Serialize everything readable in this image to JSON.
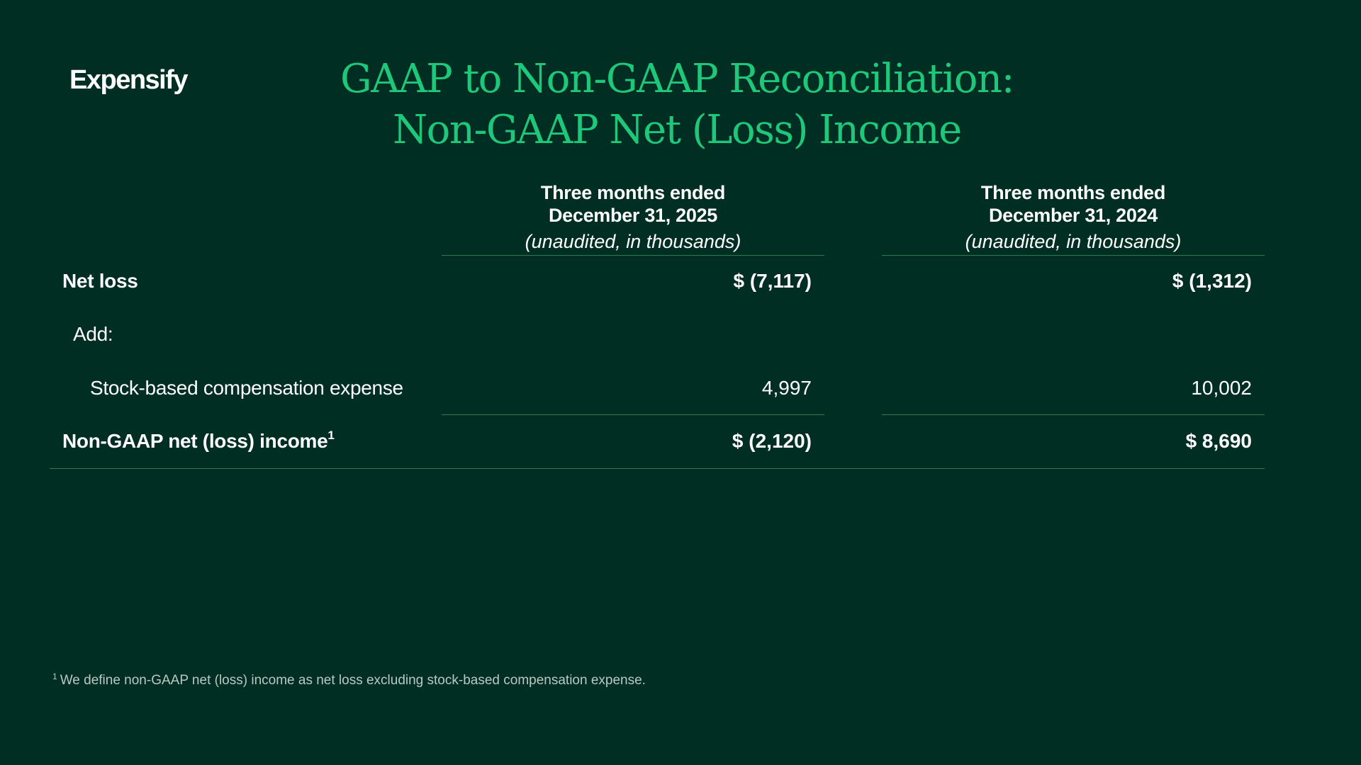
{
  "brand": {
    "logo_text": "Expensify"
  },
  "title": {
    "line1": "GAAP to Non-GAAP Reconciliation:",
    "line2": "Non-GAAP Net (Loss) Income"
  },
  "table": {
    "columns": [
      {
        "line1": "Three months ended",
        "line2": "December 31, 2025",
        "note": "(unaudited, in thousands)"
      },
      {
        "line1": "Three months ended",
        "line2": "December 31, 2024",
        "note": "(unaudited, in thousands)"
      }
    ],
    "rows": {
      "net_loss": {
        "label": "Net loss",
        "v2025": "$ (7,117)",
        "v2024": "$ (1,312)"
      },
      "add": {
        "label": "Add:"
      },
      "sbc": {
        "label": "Stock-based compensation expense",
        "v2025": "4,997",
        "v2024": "10,002"
      },
      "non_gaap": {
        "label": "Non-GAAP net (loss) income",
        "footnote_marker": "1",
        "v2025": "$ (2,120)",
        "v2024": "$ 8,690"
      }
    }
  },
  "footnote": {
    "marker": "1",
    "text": "We define non-GAAP net (loss) income as net loss excluding stock-based compensation expense."
  },
  "colors": {
    "background": "#002e22",
    "accent": "#1ec87b",
    "rule": "#2a7a52"
  }
}
